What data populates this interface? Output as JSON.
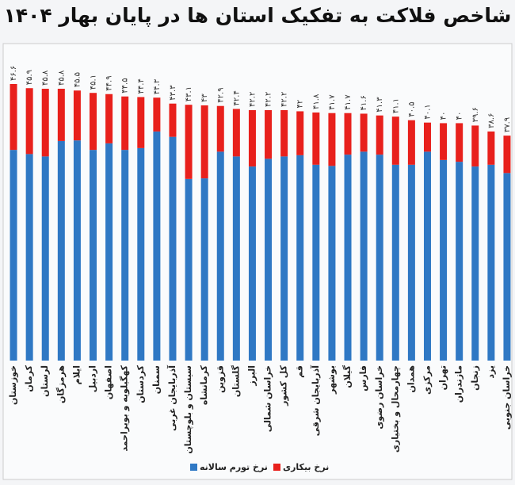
{
  "chart_data": {
    "type": "stacked_bar",
    "title": "شاخص فلاکت به تفکیک استان ها در پایان بهار ۱۴۰۴",
    "categories": [
      "خوزستان",
      "کرمان",
      "لرستان",
      "هرمزگان",
      "ایلام",
      "اردبیل",
      "اصفهان",
      "کهگیلویه و بویراحمد",
      "کردستان",
      "سمنان",
      "آذربایجان غربی",
      "سیستان و بلوچستان",
      "کرمانشاه",
      "قزوین",
      "گلستان",
      "البرز",
      "خراسان شمالی",
      "کل کشور",
      "قم",
      "آذربایجان شرقی",
      "بوشهر",
      "گیلان",
      "فارس",
      "خراسان رضوی",
      "چهارمحال و بختیاری",
      "همدان",
      "مرکزی",
      "تهران",
      "مازندران",
      "زنجان",
      "یزد",
      "خراسان جنوبی"
    ],
    "series": [
      {
        "name": "نرخ تورم سالانه",
        "color": "#2f78c4",
        "values": [
          35.5,
          34.8,
          34.4,
          37.0,
          37.1,
          35.5,
          36.6,
          35.5,
          35.8,
          38.6,
          37.7,
          30.6,
          30.7,
          35.2,
          34.4,
          32.7,
          34.0,
          34.4,
          34.6,
          33.0,
          32.8,
          34.7,
          35.2,
          34.7,
          33.0,
          33.0,
          35.2,
          33.8,
          33.5,
          32.7,
          33.0,
          31.6
        ]
      },
      {
        "name": "نرخ بیکاری",
        "color": "#e8201c",
        "values": [
          11.1,
          11.1,
          11.4,
          8.8,
          8.4,
          9.6,
          8.3,
          9.0,
          8.6,
          5.7,
          5.6,
          12.5,
          12.3,
          7.7,
          8.0,
          9.5,
          8.2,
          7.8,
          7.4,
          8.8,
          8.9,
          7.0,
          6.4,
          6.6,
          8.1,
          7.5,
          4.9,
          6.2,
          6.5,
          6.9,
          5.6,
          6.3
        ]
      }
    ],
    "totals": [
      46.6,
      45.9,
      45.8,
      45.8,
      45.5,
      45.1,
      44.9,
      44.5,
      44.4,
      44.3,
      43.3,
      43.1,
      43,
      42.9,
      42.4,
      42.2,
      42.2,
      42.2,
      42,
      41.8,
      41.7,
      41.7,
      41.6,
      41.3,
      41.1,
      40.5,
      40.1,
      40,
      40,
      39.6,
      38.6,
      37.9
    ],
    "total_labels": [
      "۴۶.۶",
      "۴۵.۹",
      "۴۵.۸",
      "۴۵.۸",
      "۴۵.۵",
      "۴۵.۱",
      "۴۴.۹",
      "۴۴.۵",
      "۴۴.۴",
      "۴۴.۳",
      "۴۳.۳",
      "۴۳.۱",
      "۴۳",
      "۴۲.۹",
      "۴۲.۴",
      "۴۲.۲",
      "۴۲.۲",
      "۴۲.۲",
      "۴۲",
      "۴۱.۸",
      "۴۱.۷",
      "۴۱.۷",
      "۴۱.۶",
      "۴۱.۳",
      "۴۱.۱",
      "۴۰.۵",
      "۴۰.۱",
      "۴۰",
      "۴۰",
      "۳۹.۶",
      "۳۸.۶",
      "۳۷.۹"
    ],
    "ylim": [
      0,
      47
    ]
  }
}
